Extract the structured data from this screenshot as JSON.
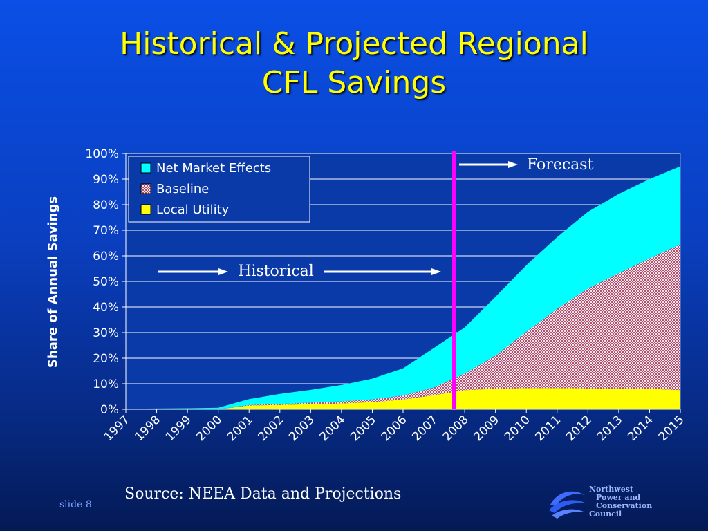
{
  "slide": {
    "title_line1": "Historical & Projected Regional",
    "title_line2": "CFL Savings",
    "source": "Source: NEEA Data and Projections",
    "slide_number": "slide 8",
    "org_name": [
      "Northwest",
      "Power and",
      "Conservation",
      "Council"
    ],
    "colors": {
      "title": "#ffff00",
      "background_top": "#0a4fe6",
      "background_bottom": "#041a55",
      "forecast_line": "#ff00ff"
    }
  },
  "chart_data": {
    "type": "area",
    "stacked": true,
    "title": "",
    "xlabel": "",
    "ylabel": "Share of Annual Savings",
    "ylim": [
      0,
      1
    ],
    "yticks": [
      0,
      0.1,
      0.2,
      0.3,
      0.4,
      0.5,
      0.6,
      0.7,
      0.8,
      0.9,
      1.0
    ],
    "ytick_labels": [
      "0%",
      "10%",
      "20%",
      "30%",
      "40%",
      "50%",
      "60%",
      "70%",
      "80%",
      "90%",
      "100%"
    ],
    "categories": [
      "1997",
      "1998",
      "1999",
      "2000",
      "2001",
      "2002",
      "2003",
      "2004",
      "2005",
      "2006",
      "2007",
      "2008",
      "2009",
      "2010",
      "2011",
      "2012",
      "2013",
      "2014",
      "2015"
    ],
    "grid": true,
    "legend_position": "top-left",
    "series": [
      {
        "name": "Local Utility",
        "color": "#ffff00",
        "pattern": "solid",
        "values": [
          0.0,
          0.0,
          0.0,
          0.0,
          0.015,
          0.017,
          0.02,
          0.023,
          0.028,
          0.038,
          0.055,
          0.075,
          0.08,
          0.083,
          0.083,
          0.082,
          0.082,
          0.08,
          0.075
        ]
      },
      {
        "name": "Baseline",
        "color": "#c07a92",
        "pattern": "checker",
        "values": [
          0.0,
          0.0,
          0.0,
          0.0,
          0.002,
          0.004,
          0.006,
          0.008,
          0.011,
          0.016,
          0.03,
          0.065,
          0.13,
          0.22,
          0.31,
          0.39,
          0.45,
          0.51,
          0.57
        ]
      },
      {
        "name": "Net Market Effects",
        "color": "#00ffff",
        "pattern": "solid",
        "values": [
          0.002,
          0.003,
          0.004,
          0.006,
          0.023,
          0.039,
          0.05,
          0.064,
          0.081,
          0.106,
          0.155,
          0.18,
          0.23,
          0.26,
          0.28,
          0.3,
          0.31,
          0.31,
          0.305
        ]
      }
    ],
    "legend_order": [
      "Net Market Effects",
      "Baseline",
      "Local Utility"
    ],
    "forecast_divider_x": 2007.65,
    "annotations": [
      {
        "text": "Historical",
        "arrow": "right"
      },
      {
        "text": "Forecast",
        "arrow": "right"
      }
    ]
  }
}
